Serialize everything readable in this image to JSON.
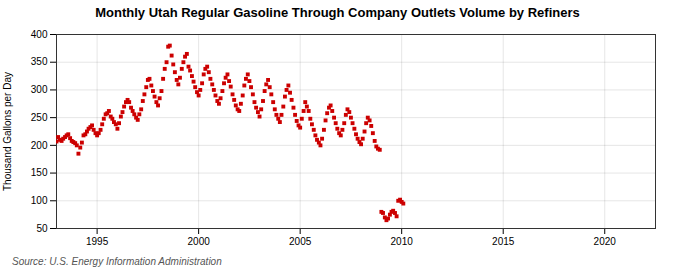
{
  "chart_data": {
    "type": "scatter",
    "title": "Monthly Utah Regular Gasoline Through Company Outlets Volume by Refiners",
    "ylabel": "Thousand Gallons per Day",
    "source": "Source: U.S. Energy Information Administration",
    "color": "#cc0000",
    "marker": "square",
    "grid": true,
    "xlim": [
      1993.0,
      2022.5
    ],
    "ylim": [
      50,
      400
    ],
    "xticks": [
      1995,
      2000,
      2005,
      2010,
      2015,
      2020
    ],
    "yticks": [
      50,
      100,
      150,
      200,
      250,
      300,
      350,
      400
    ],
    "x": [
      1993.0,
      1993.08,
      1993.17,
      1993.25,
      1993.33,
      1993.42,
      1993.5,
      1993.58,
      1993.67,
      1993.75,
      1993.83,
      1993.92,
      1994.0,
      1994.08,
      1994.17,
      1994.25,
      1994.33,
      1994.42,
      1994.5,
      1994.58,
      1994.67,
      1994.75,
      1994.83,
      1994.92,
      1995.0,
      1995.08,
      1995.17,
      1995.25,
      1995.33,
      1995.42,
      1995.5,
      1995.58,
      1995.67,
      1995.75,
      1995.83,
      1995.92,
      1996.0,
      1996.08,
      1996.17,
      1996.25,
      1996.33,
      1996.42,
      1996.5,
      1996.58,
      1996.67,
      1996.75,
      1996.83,
      1996.92,
      1997.0,
      1997.08,
      1997.17,
      1997.25,
      1997.33,
      1997.42,
      1997.5,
      1997.58,
      1997.67,
      1997.75,
      1997.83,
      1997.92,
      1998.0,
      1998.08,
      1998.17,
      1998.25,
      1998.33,
      1998.42,
      1998.5,
      1998.58,
      1998.67,
      1998.75,
      1998.83,
      1998.92,
      1999.0,
      1999.08,
      1999.17,
      1999.25,
      1999.33,
      1999.42,
      1999.5,
      1999.58,
      1999.67,
      1999.75,
      1999.83,
      1999.92,
      2000.0,
      2000.08,
      2000.17,
      2000.25,
      2000.33,
      2000.42,
      2000.5,
      2000.58,
      2000.67,
      2000.75,
      2000.83,
      2000.92,
      2001.0,
      2001.08,
      2001.17,
      2001.25,
      2001.33,
      2001.42,
      2001.5,
      2001.58,
      2001.67,
      2001.75,
      2001.83,
      2001.92,
      2002.0,
      2002.08,
      2002.17,
      2002.25,
      2002.33,
      2002.42,
      2002.5,
      2002.58,
      2002.67,
      2002.75,
      2002.83,
      2002.92,
      2003.0,
      2003.08,
      2003.17,
      2003.25,
      2003.33,
      2003.42,
      2003.5,
      2003.58,
      2003.67,
      2003.75,
      2003.83,
      2003.92,
      2004.0,
      2004.08,
      2004.17,
      2004.25,
      2004.33,
      2004.42,
      2004.5,
      2004.58,
      2004.67,
      2004.75,
      2004.83,
      2004.92,
      2005.0,
      2005.08,
      2005.17,
      2005.25,
      2005.33,
      2005.42,
      2005.5,
      2005.58,
      2005.67,
      2005.75,
      2005.83,
      2005.92,
      2006.0,
      2006.08,
      2006.17,
      2006.25,
      2006.33,
      2006.42,
      2006.5,
      2006.58,
      2006.67,
      2006.75,
      2006.83,
      2006.92,
      2007.0,
      2007.08,
      2007.17,
      2007.25,
      2007.33,
      2007.42,
      2007.5,
      2007.58,
      2007.67,
      2007.75,
      2007.83,
      2007.92,
      2008.0,
      2008.08,
      2008.17,
      2008.25,
      2008.33,
      2008.42,
      2008.5,
      2008.58,
      2008.67,
      2008.75,
      2008.83,
      2008.92,
      2009.0,
      2009.08,
      2009.17,
      2009.25,
      2009.33,
      2009.42,
      2009.5,
      2009.58,
      2009.67,
      2009.75,
      2009.83,
      2009.92,
      2010.0,
      2010.08
    ],
    "values": [
      207,
      215,
      210,
      208,
      212,
      215,
      218,
      220,
      213,
      208,
      206,
      204,
      200,
      185,
      196,
      205,
      218,
      220,
      225,
      230,
      233,
      236,
      228,
      222,
      218,
      222,
      228,
      238,
      248,
      256,
      258,
      262,
      252,
      248,
      242,
      238,
      230,
      240,
      252,
      260,
      270,
      278,
      282,
      278,
      268,
      262,
      256,
      250,
      246,
      256,
      265,
      280,
      292,
      305,
      318,
      320,
      308,
      298,
      288,
      278,
      272,
      285,
      298,
      320,
      338,
      350,
      378,
      380,
      362,
      346,
      332,
      318,
      310,
      322,
      338,
      350,
      360,
      365,
      342,
      335,
      325,
      315,
      305,
      296,
      290,
      300,
      312,
      328,
      338,
      342,
      332,
      320,
      310,
      300,
      290,
      280,
      275,
      285,
      298,
      312,
      322,
      328,
      316,
      306,
      292,
      282,
      272,
      265,
      262,
      275,
      290,
      308,
      320,
      328,
      316,
      305,
      292,
      278,
      268,
      260,
      252,
      265,
      280,
      298,
      310,
      318,
      305,
      292,
      278,
      265,
      255,
      248,
      242,
      255,
      270,
      288,
      300,
      308,
      295,
      282,
      268,
      255,
      244,
      236,
      232,
      248,
      262,
      278,
      270,
      262,
      248,
      238,
      228,
      218,
      210,
      205,
      200,
      212,
      228,
      245,
      258,
      268,
      272,
      262,
      250,
      240,
      230,
      222,
      218,
      228,
      240,
      255,
      265,
      260,
      250,
      240,
      230,
      220,
      212,
      206,
      202,
      212,
      225,
      240,
      250,
      245,
      235,
      222,
      208,
      198,
      194,
      192,
      80,
      78,
      70,
      65,
      68,
      75,
      80,
      82,
      78,
      72,
      100,
      102,
      98,
      95
    ]
  }
}
